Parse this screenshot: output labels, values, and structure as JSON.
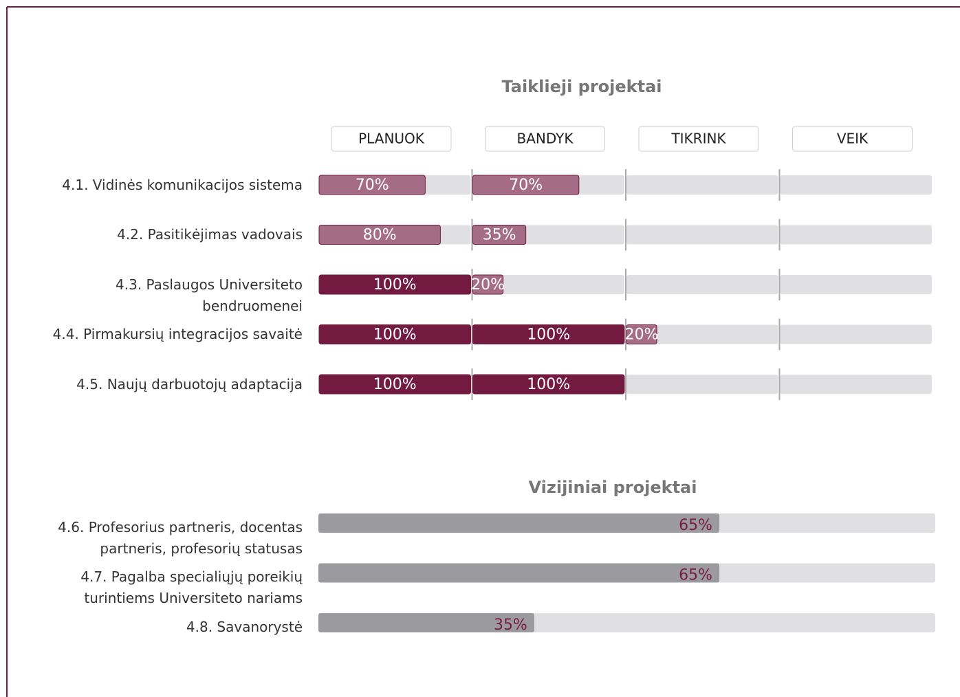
{
  "chart_data": [
    {
      "type": "stage-progress",
      "title": "Taiklieji projektai",
      "stages": [
        "PLANUOK",
        "BANDYK",
        "TIKRINK",
        "VEIK"
      ],
      "categories": [
        "4.1. Vidinės komunikacijos sistema",
        "4.2. Pasitikėjimas vadovais",
        "4.3. Paslaugos Universiteto\nbendruomenei",
        "4.4. Pirmakursių integracijos savaitė",
        "4.5. Naujų darbuotojų adaptacija"
      ],
      "series": [
        {
          "name": "PLANUOK",
          "values": [
            70,
            80,
            100,
            100,
            100
          ],
          "value_labels": [
            "70%",
            "80%",
            "100%",
            "100%",
            "100%"
          ]
        },
        {
          "name": "BANDYK",
          "values": [
            70,
            35,
            20,
            100,
            100
          ],
          "value_labels": [
            "70%",
            "35%",
            "20%",
            "100%",
            "100%"
          ]
        },
        {
          "name": "TIKRINK",
          "values": [
            null,
            null,
            null,
            20,
            null
          ],
          "value_labels": [
            null,
            null,
            null,
            "20%",
            null
          ]
        },
        {
          "name": "VEIK",
          "values": [
            null,
            null,
            null,
            null,
            null
          ],
          "value_labels": [
            null,
            null,
            null,
            null,
            null
          ]
        }
      ],
      "xlim": [
        0,
        100
      ],
      "color": "#a56d85",
      "complete_color": "#721a40"
    },
    {
      "type": "progress-bar",
      "title": "Vizijiniai projektai",
      "categories": [
        "4.6. Profesorius partneris, docentas\npartneris, profesorių statusas",
        "4.7. Pagalba specialiųjų poreikių\nturintiems Universiteto nariams",
        "4.8. Savanorystė"
      ],
      "values": [
        65,
        65,
        35
      ],
      "value_labels": [
        "65%",
        "65%",
        "35%"
      ],
      "xlim": [
        0,
        100
      ],
      "color": "#9b9b9f",
      "label_color": "#7a1a45"
    }
  ]
}
